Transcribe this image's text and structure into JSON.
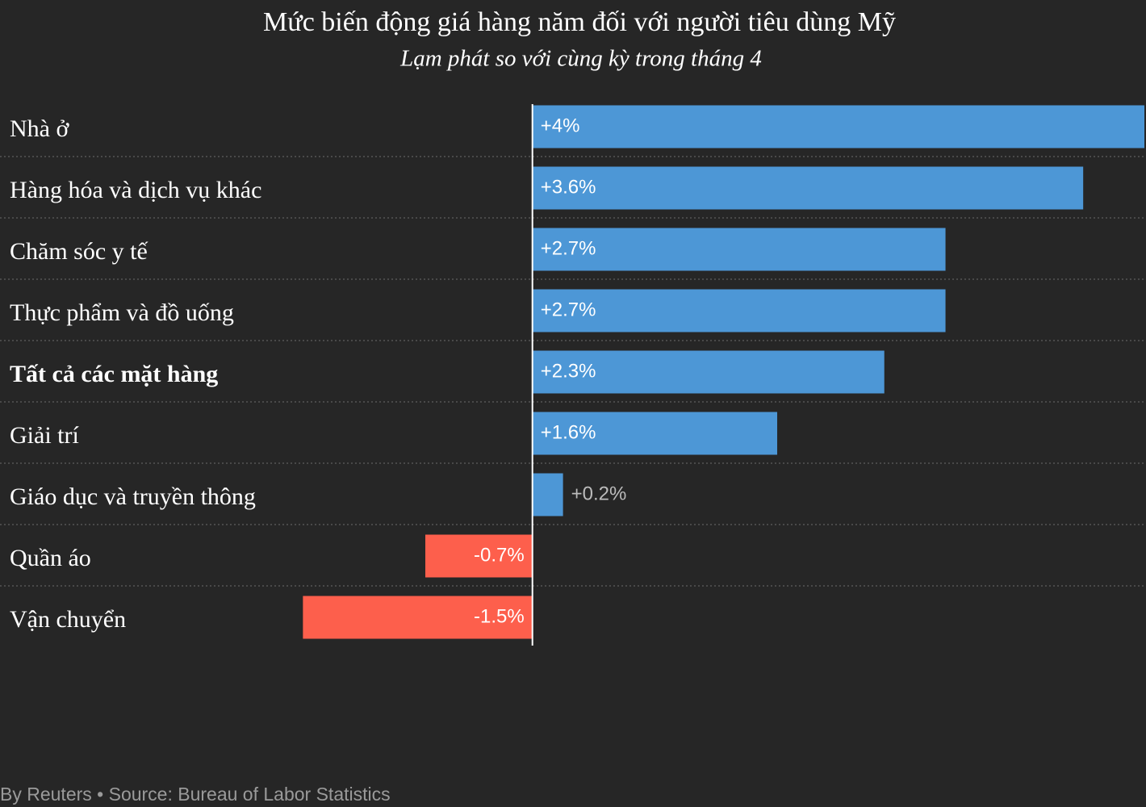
{
  "chart_data": {
    "type": "bar",
    "orientation": "horizontal",
    "title": "Mức biến động giá hàng năm đối với người tiêu dùng Mỹ",
    "subtitle": "Lạm phát so với cùng kỳ trong tháng 4",
    "categories": [
      "Nhà ở",
      "Hàng hóa và dịch vụ khác",
      "Chăm sóc y tế",
      "Thực phẩm và đồ uống",
      "Tất cả các mặt hàng",
      "Giải trí",
      "Giáo dục và truyền thông",
      "Quần áo",
      "Vận chuyển"
    ],
    "values": [
      4,
      3.6,
      2.7,
      2.7,
      2.3,
      1.6,
      0.2,
      -0.7,
      -1.5
    ],
    "value_labels": [
      "+4%",
      "+3.6%",
      "+2.7%",
      "+2.7%",
      "+2.3%",
      "+1.6%",
      "+0.2%",
      "-0.7%",
      "-1.5%"
    ],
    "bold": [
      false,
      false,
      false,
      false,
      true,
      false,
      false,
      false,
      false
    ],
    "colors": {
      "positive": "#4d97d6",
      "negative": "#fd5f4c"
    },
    "xlim": [
      -3.48,
      4
    ],
    "source": "By Reuters • Source: Bureau of Labor Statistics"
  }
}
